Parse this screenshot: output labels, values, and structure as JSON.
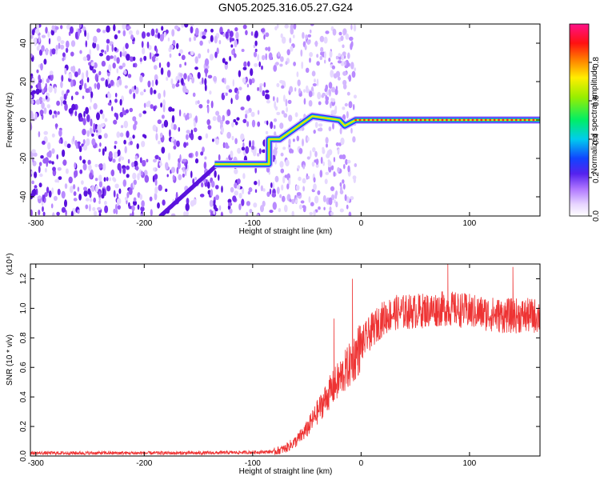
{
  "title": "GN05.2025.316.05.27.G24",
  "chart_data": [
    {
      "type": "heatmap",
      "name": "spectrogram",
      "xlabel": "Height of straight line (km)",
      "ylabel": "Frequency (Hz)",
      "xlim": [
        -305,
        165
      ],
      "ylim": [
        -50,
        50
      ],
      "xticks": [
        -300,
        -200,
        -100,
        0,
        100
      ],
      "yticks": [
        -40,
        -20,
        0,
        20,
        40
      ],
      "colorbar": {
        "label": "Normalized spectral amplitude",
        "range": [
          0,
          1
        ],
        "ticks": [
          "0.0",
          "0.2",
          "0.4",
          "0.6",
          "0.8"
        ],
        "tick_values": [
          0,
          0.2,
          0.4,
          0.6,
          0.8
        ]
      },
      "signal_track": [
        {
          "x": -135,
          "y": -23
        },
        {
          "x": -85,
          "y": -23
        },
        {
          "x": -85,
          "y": -10
        },
        {
          "x": -75,
          "y": -10
        },
        {
          "x": -45,
          "y": 2
        },
        {
          "x": -20,
          "y": 0
        },
        {
          "x": -15,
          "y": -3
        },
        {
          "x": -5,
          "y": 0
        },
        {
          "x": 165,
          "y": 0
        }
      ]
    },
    {
      "type": "line",
      "name": "snr",
      "xlabel": "Height of straight line (km)",
      "ylabel": "SNR (10 * v/v)",
      "scale_label": "(x10⁴)",
      "xlim": [
        -305,
        165
      ],
      "ylim": [
        0,
        1.3
      ],
      "xticks": [
        -300,
        -200,
        -100,
        0,
        100
      ],
      "yticks": [
        "0.0",
        "0.2",
        "0.4",
        "0.6",
        "0.8",
        "1.0",
        "1.2"
      ],
      "ytick_values": [
        0,
        0.2,
        0.4,
        0.6,
        0.8,
        1.0,
        1.2
      ],
      "color": "#ee3333",
      "series": [
        {
          "name": "SNR",
          "x": [
            -305,
            -250,
            -200,
            -150,
            -100,
            -80,
            -70,
            -60,
            -50,
            -40,
            -30,
            -20,
            -10,
            0,
            10,
            20,
            30,
            50,
            80,
            100,
            130,
            165
          ],
          "y": [
            0.02,
            0.02,
            0.02,
            0.02,
            0.025,
            0.03,
            0.05,
            0.1,
            0.18,
            0.3,
            0.42,
            0.52,
            0.62,
            0.75,
            0.85,
            0.93,
            0.97,
            0.98,
            1.0,
            0.98,
            0.95,
            0.95
          ]
        }
      ],
      "peaks": [
        {
          "x": -25,
          "y": 0.93
        },
        {
          "x": -8,
          "y": 1.2
        },
        {
          "x": 80,
          "y": 1.3
        },
        {
          "x": 140,
          "y": 1.28
        }
      ]
    }
  ]
}
